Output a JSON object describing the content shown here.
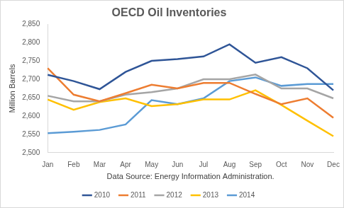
{
  "chart_data": {
    "type": "line",
    "title": "OECD Oil Inventories",
    "y_label": "Million Barrels",
    "x_label": "Data Source: Energy Information Administration.",
    "categories": [
      "Jan",
      "Feb",
      "Mar",
      "Apr",
      "May",
      "Jun",
      "Jul",
      "Aug",
      "Sep",
      "Oct",
      "Nov",
      "Dec"
    ],
    "series": [
      {
        "name": "2010",
        "color": "#2f5597",
        "values": [
          2712,
          2695,
          2673,
          2720,
          2750,
          2755,
          2762,
          2795,
          2745,
          2760,
          2730,
          2670
        ]
      },
      {
        "name": "2011",
        "color": "#ed7d31",
        "values": [
          2730,
          2658,
          2640,
          2662,
          2685,
          2675,
          2690,
          2690,
          2660,
          2632,
          2648,
          2595
        ]
      },
      {
        "name": "2012",
        "color": "#a5a5a5",
        "values": [
          2655,
          2640,
          2640,
          2658,
          2665,
          2675,
          2700,
          2700,
          2713,
          2675,
          2675,
          2648
        ]
      },
      {
        "name": "2013",
        "color": "#ffc000",
        "values": [
          2645,
          2617,
          2638,
          2648,
          2627,
          2632,
          2645,
          2645,
          2670,
          2630,
          2587,
          2545
        ]
      },
      {
        "name": "2014",
        "color": "#5b9bd5",
        "values": [
          2553,
          2557,
          2562,
          2577,
          2643,
          2632,
          2648,
          2695,
          2705,
          2682,
          2687,
          2687
        ]
      }
    ],
    "ylim": [
      2500,
      2850
    ],
    "yticks": [
      {
        "value": 2500,
        "label": "2,500"
      },
      {
        "value": 2550,
        "label": "2,550"
      },
      {
        "value": 2600,
        "label": "2,600"
      },
      {
        "value": 2650,
        "label": "2,650"
      },
      {
        "value": 2700,
        "label": "2,700"
      },
      {
        "value": 2750,
        "label": "2,750"
      },
      {
        "value": 2800,
        "label": "2,800"
      },
      {
        "value": 2850,
        "label": "2,850"
      }
    ],
    "grid": false,
    "legend": "bottom"
  }
}
